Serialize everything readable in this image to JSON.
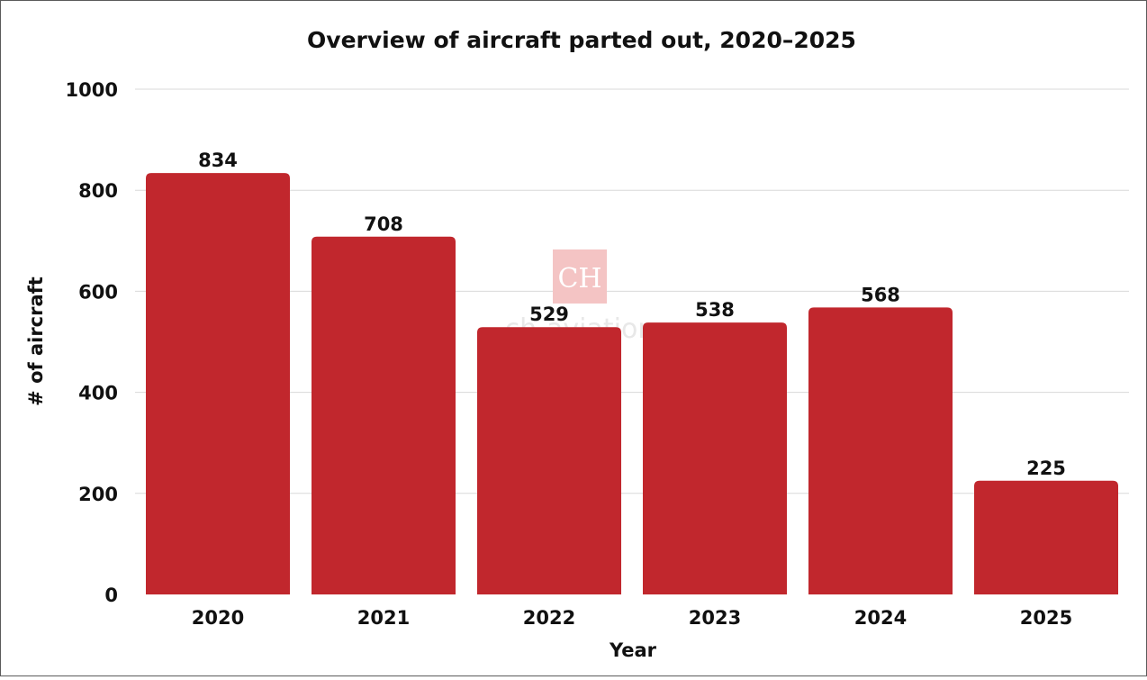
{
  "chart_data": {
    "type": "bar",
    "title": "Overview of aircraft parted out, 2020–2025",
    "xlabel": "Year",
    "ylabel": "# of aircraft",
    "categories": [
      "2020",
      "2021",
      "2022",
      "2023",
      "2024",
      "2025"
    ],
    "values": [
      834,
      708,
      529,
      538,
      568,
      225
    ],
    "ylim": [
      0,
      1000
    ],
    "yticks": [
      0,
      200,
      400,
      600,
      800,
      1000
    ],
    "grid": true,
    "bar_color": "#c1272d",
    "data_labels": true
  },
  "watermark": {
    "logo_text": "CH",
    "text": "ch-aviation",
    "color": "#f2b8b8"
  }
}
